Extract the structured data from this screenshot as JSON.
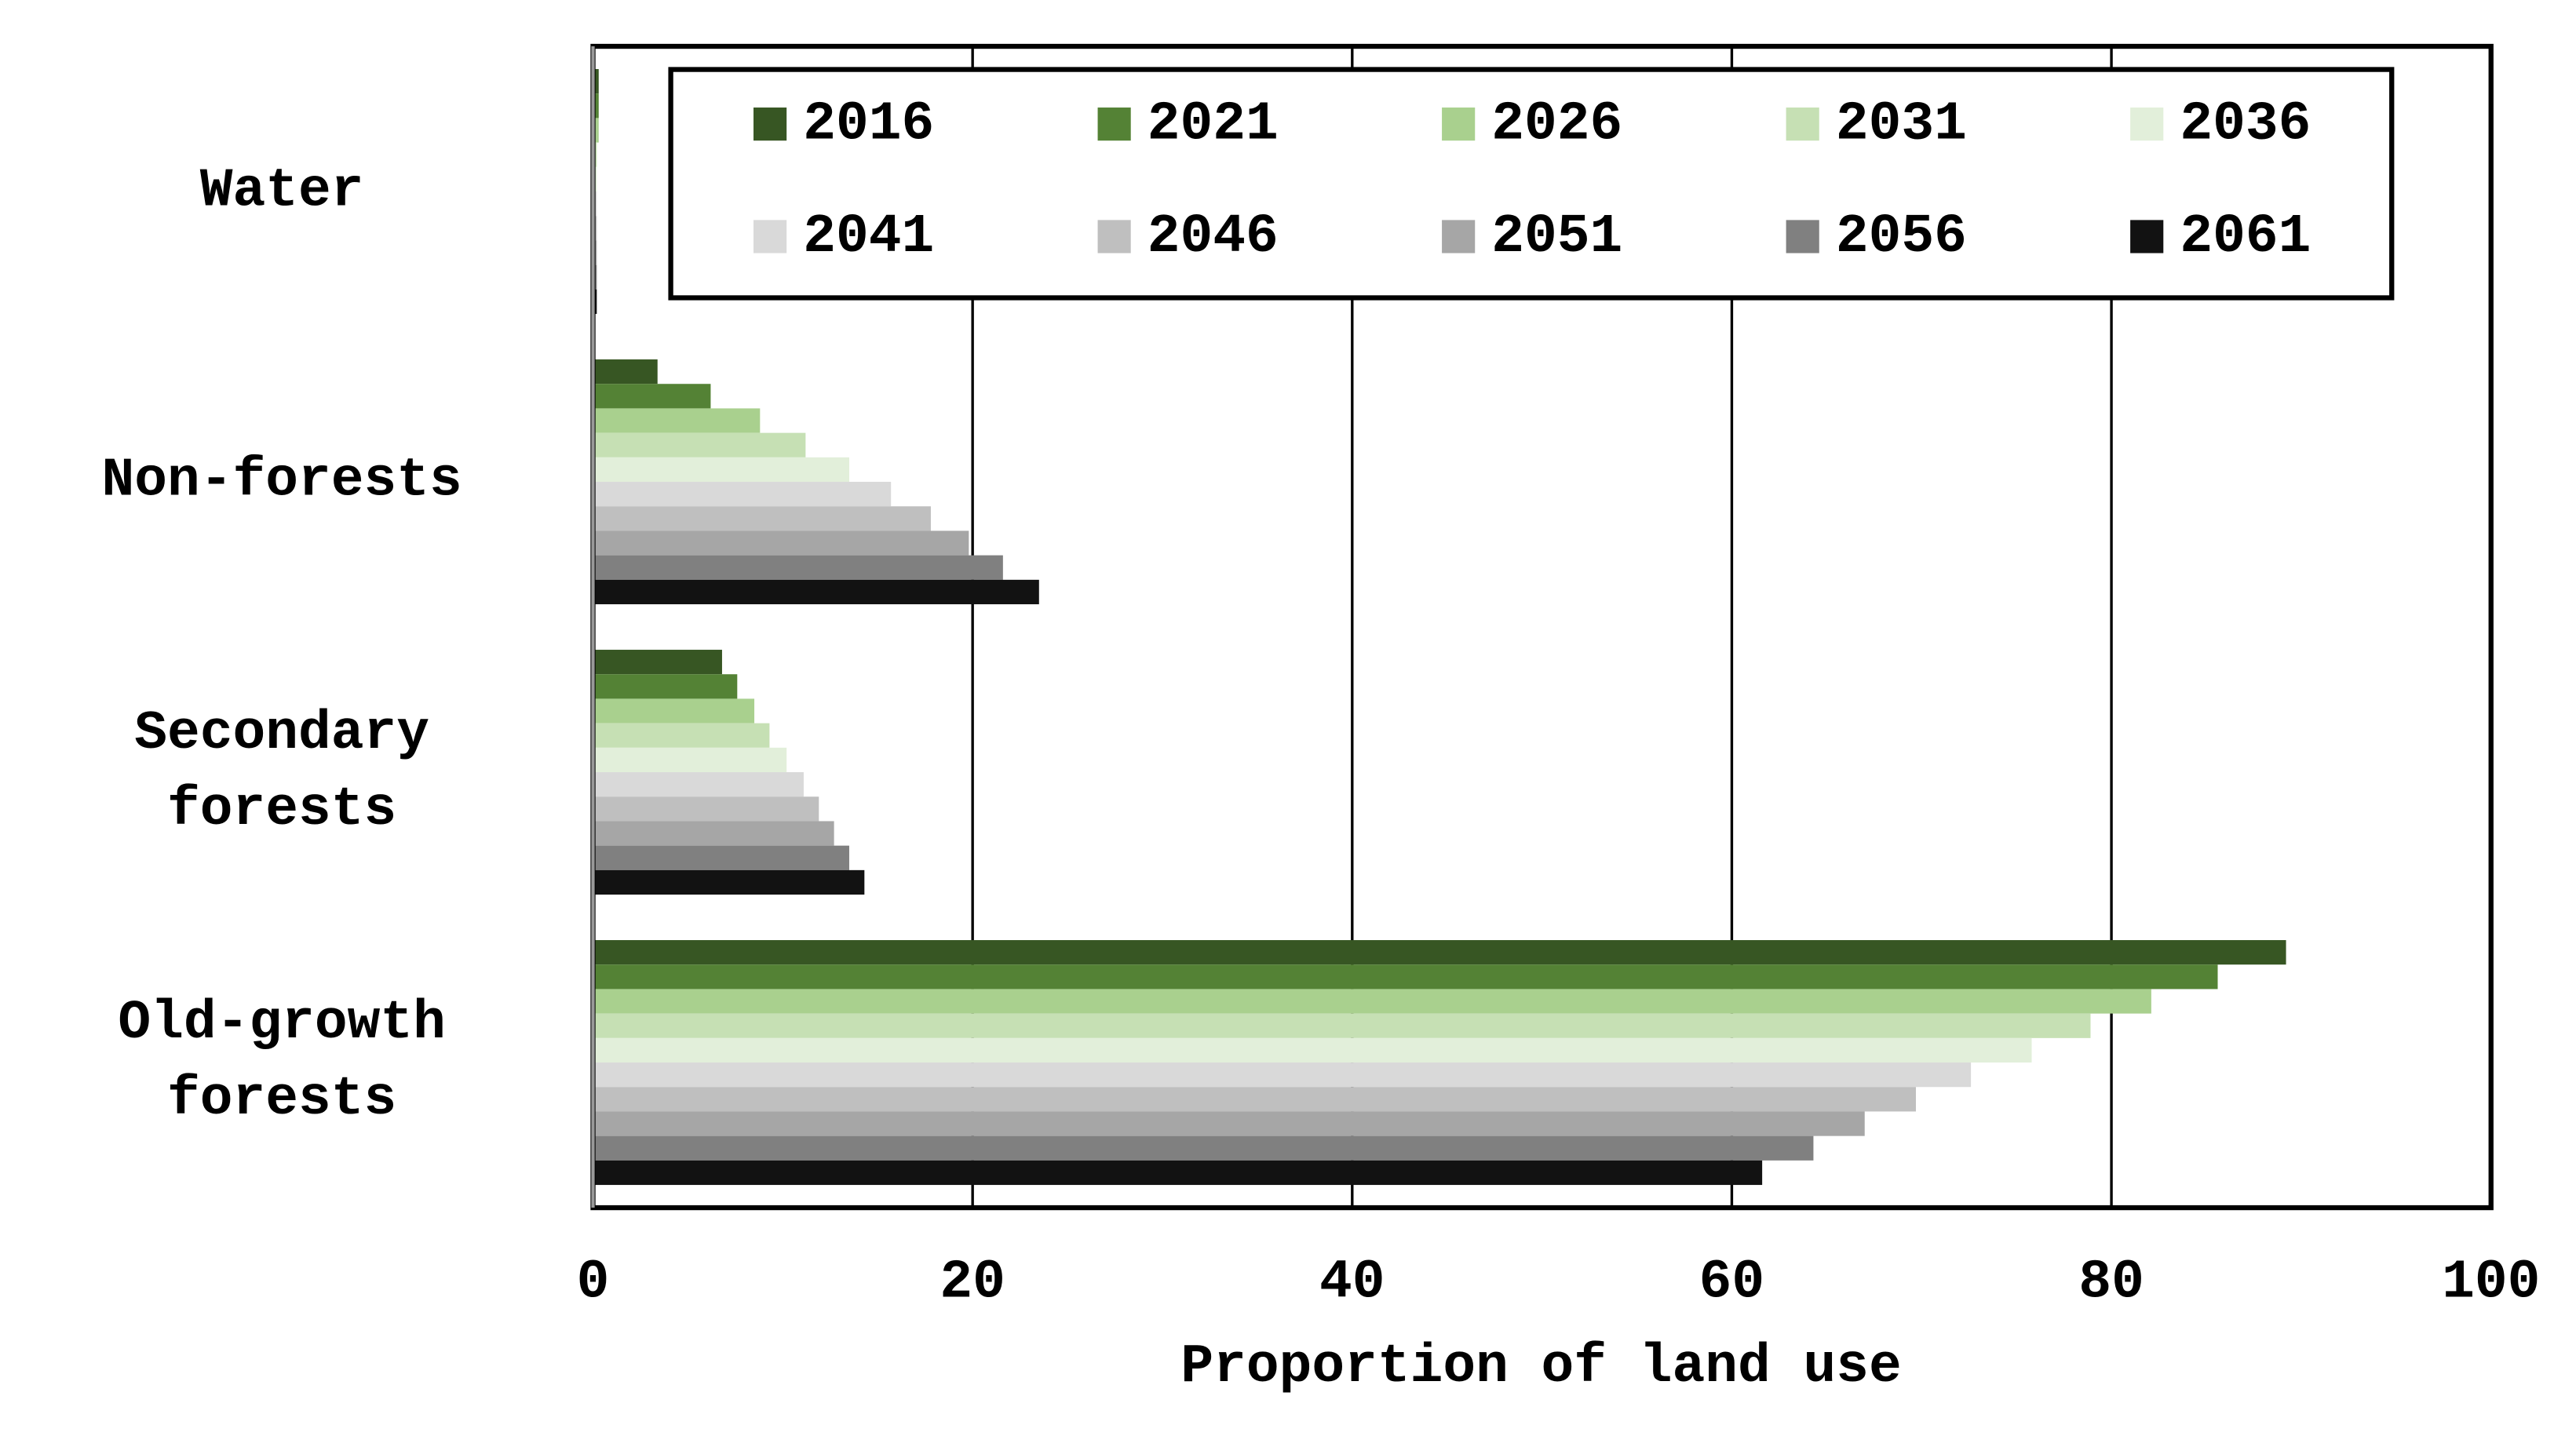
{
  "chart_data": {
    "type": "barh",
    "xlabel": "Proportion of land use",
    "categories": [
      "Water",
      "Non-forests",
      "Secondary forests",
      "Old-growth forests"
    ],
    "series": [
      {
        "name": "2016",
        "color": "#375623",
        "values": [
          0.3,
          3.4,
          6.8,
          89.2
        ]
      },
      {
        "name": "2021",
        "color": "#548235",
        "values": [
          0.3,
          6.2,
          7.6,
          85.6
        ]
      },
      {
        "name": "2026",
        "color": "#a9d08e",
        "values": [
          0.3,
          8.8,
          8.5,
          82.1
        ]
      },
      {
        "name": "2031",
        "color": "#c6e0b4",
        "values": [
          0.2,
          11.2,
          9.3,
          78.9
        ]
      },
      {
        "name": "2036",
        "color": "#e2efda",
        "values": [
          0.2,
          13.5,
          10.2,
          75.8
        ]
      },
      {
        "name": "2041",
        "color": "#d9d9d9",
        "values": [
          0.2,
          15.7,
          11.1,
          72.6
        ]
      },
      {
        "name": "2046",
        "color": "#bfbfbf",
        "values": [
          0.2,
          17.8,
          11.9,
          69.7
        ]
      },
      {
        "name": "2051",
        "color": "#a6a6a6",
        "values": [
          0.2,
          19.8,
          12.7,
          67.0
        ]
      },
      {
        "name": "2056",
        "color": "#808080",
        "values": [
          0.2,
          21.6,
          13.5,
          64.3
        ]
      },
      {
        "name": "2061",
        "color": "#121212",
        "values": [
          0.2,
          23.5,
          14.3,
          61.6
        ]
      }
    ],
    "xlim": [
      0,
      100
    ],
    "xticks": [
      0,
      20,
      40,
      60,
      80,
      100
    ],
    "grid": true
  }
}
